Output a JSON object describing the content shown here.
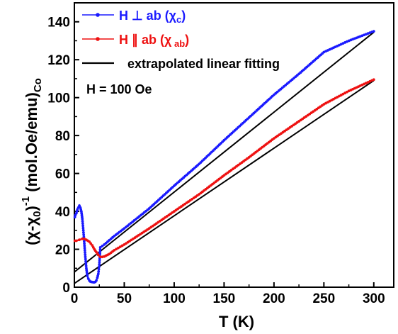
{
  "chart_data": {
    "type": "line",
    "xlabel": "T (K)",
    "ylabel": "(χ-χ₀)⁻¹ (mol.Oe/emu)Co",
    "xlim": [
      0,
      320
    ],
    "ylim": [
      0,
      150
    ],
    "x_ticks": [
      0,
      50,
      100,
      150,
      200,
      250,
      300
    ],
    "y_ticks": [
      0,
      20,
      40,
      60,
      80,
      100,
      120,
      140
    ],
    "grid": false,
    "legend_position": "top-left",
    "annotation": "H = 100 Oe",
    "series": [
      {
        "name": "H ⊥ ab (χc)",
        "color": "#1a1aff",
        "marker": "dot",
        "x": [
          0.5,
          1,
          2,
          3,
          4,
          5,
          6,
          7,
          8,
          9,
          10,
          11,
          12,
          13,
          14,
          15,
          16,
          17,
          18,
          19,
          20,
          21,
          22,
          23,
          24,
          25,
          26,
          30,
          40,
          50,
          75,
          100,
          125,
          150,
          175,
          200,
          225,
          250,
          275,
          300
        ],
        "y": [
          37,
          38,
          39,
          41,
          42,
          43,
          42,
          40,
          36,
          30,
          23,
          16,
          10,
          6,
          4.5,
          3.5,
          3,
          2.8,
          2.7,
          2.6,
          2.6,
          2.8,
          3.5,
          5,
          7,
          12,
          21,
          22.5,
          27,
          31,
          41.5,
          53.5,
          65,
          77.5,
          89.5,
          101.5,
          112.5,
          124,
          130,
          135
        ]
      },
      {
        "name": "H ∥ ab (χ ab)",
        "color": "#ee1111",
        "marker": "dot",
        "x": [
          0.5,
          2,
          5,
          8,
          10,
          12,
          15,
          18,
          20,
          22,
          24,
          26,
          28,
          30,
          35,
          40,
          50,
          75,
          100,
          125,
          150,
          175,
          200,
          225,
          250,
          275,
          300
        ],
        "y": [
          24.5,
          24.5,
          25,
          25.5,
          25.5,
          25,
          24,
          22,
          20,
          18.5,
          17,
          16,
          16,
          16.2,
          17.5,
          19.5,
          22.5,
          31,
          40,
          49,
          59,
          68.5,
          78.5,
          87.5,
          96.5,
          103.5,
          109.5
        ]
      },
      {
        "name": "extrapolated linear fitting",
        "color": "#000000",
        "marker": "none",
        "lines": [
          {
            "x": [
              0,
              300
            ],
            "y": [
              8,
              134.5
            ]
          },
          {
            "x": [
              0,
              300
            ],
            "y": [
              2,
              109
            ]
          }
        ]
      }
    ]
  }
}
